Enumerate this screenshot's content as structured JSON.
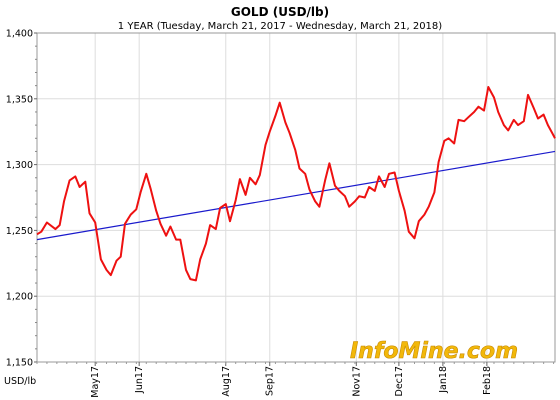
{
  "chart_data": {
    "type": "line",
    "title": "GOLD (USD/lb)",
    "subtitle": "1 YEAR (Tuesday, March 21, 2017  -  Wednesday, March 21, 2018)",
    "unit_label": "USD/lb",
    "ylim": [
      1150,
      1400
    ],
    "y_ticks": [
      1150,
      1200,
      1250,
      1300,
      1350,
      1400
    ],
    "y_tick_labels": [
      "1,150",
      "1,200",
      "1,250",
      "1,300",
      "1,350",
      "1,400"
    ],
    "x_range": [
      "2017-03-21",
      "2018-03-21"
    ],
    "x_ticks": [
      {
        "date": "2017-05-01",
        "label": "May17"
      },
      {
        "date": "2017-06-01",
        "label": "Jun17"
      },
      {
        "date": "2017-08-01",
        "label": "Aug17"
      },
      {
        "date": "2017-09-01",
        "label": "Sep17"
      },
      {
        "date": "2017-11-01",
        "label": "Nov17"
      },
      {
        "date": "2017-12-01",
        "label": "Dec17"
      },
      {
        "date": "2018-01-01",
        "label": "Jan18"
      },
      {
        "date": "2018-02-01",
        "label": "Feb18"
      }
    ],
    "grid": true,
    "series": [
      {
        "color": "#ee1111",
        "points": [
          [
            "2017-03-21",
            1247
          ],
          [
            "2017-03-24",
            1249
          ],
          [
            "2017-03-28",
            1256
          ],
          [
            "2017-04-03",
            1251
          ],
          [
            "2017-04-06",
            1254
          ],
          [
            "2017-04-09",
            1272
          ],
          [
            "2017-04-13",
            1288
          ],
          [
            "2017-04-17",
            1291
          ],
          [
            "2017-04-20",
            1283
          ],
          [
            "2017-04-24",
            1287
          ],
          [
            "2017-04-27",
            1263
          ],
          [
            "2017-05-01",
            1256
          ],
          [
            "2017-05-05",
            1228
          ],
          [
            "2017-05-09",
            1220
          ],
          [
            "2017-05-12",
            1216
          ],
          [
            "2017-05-16",
            1227
          ],
          [
            "2017-05-19",
            1230
          ],
          [
            "2017-05-22",
            1255
          ],
          [
            "2017-05-26",
            1262
          ],
          [
            "2017-05-30",
            1266
          ],
          [
            "2017-06-02",
            1279
          ],
          [
            "2017-06-06",
            1293
          ],
          [
            "2017-06-09",
            1282
          ],
          [
            "2017-06-13",
            1265
          ],
          [
            "2017-06-16",
            1255
          ],
          [
            "2017-06-20",
            1246
          ],
          [
            "2017-06-23",
            1253
          ],
          [
            "2017-06-27",
            1243
          ],
          [
            "2017-06-30",
            1243
          ],
          [
            "2017-07-04",
            1220
          ],
          [
            "2017-07-07",
            1213
          ],
          [
            "2017-07-11",
            1212
          ],
          [
            "2017-07-14",
            1228
          ],
          [
            "2017-07-18",
            1240
          ],
          [
            "2017-07-21",
            1254
          ],
          [
            "2017-07-25",
            1251
          ],
          [
            "2017-07-28",
            1267
          ],
          [
            "2017-08-01",
            1270
          ],
          [
            "2017-08-04",
            1257
          ],
          [
            "2017-08-08",
            1273
          ],
          [
            "2017-08-11",
            1289
          ],
          [
            "2017-08-15",
            1277
          ],
          [
            "2017-08-18",
            1290
          ],
          [
            "2017-08-22",
            1285
          ],
          [
            "2017-08-25",
            1292
          ],
          [
            "2017-08-29",
            1315
          ],
          [
            "2017-09-01",
            1325
          ],
          [
            "2017-09-05",
            1337
          ],
          [
            "2017-09-08",
            1347
          ],
          [
            "2017-09-12",
            1332
          ],
          [
            "2017-09-15",
            1324
          ],
          [
            "2017-09-19",
            1311
          ],
          [
            "2017-09-22",
            1297
          ],
          [
            "2017-09-26",
            1293
          ],
          [
            "2017-09-29",
            1281
          ],
          [
            "2017-10-03",
            1272
          ],
          [
            "2017-10-06",
            1268
          ],
          [
            "2017-10-10",
            1288
          ],
          [
            "2017-10-13",
            1301
          ],
          [
            "2017-10-17",
            1284
          ],
          [
            "2017-10-20",
            1280
          ],
          [
            "2017-10-24",
            1276
          ],
          [
            "2017-10-27",
            1268
          ],
          [
            "2017-10-31",
            1272
          ],
          [
            "2017-11-03",
            1276
          ],
          [
            "2017-11-07",
            1275
          ],
          [
            "2017-11-10",
            1283
          ],
          [
            "2017-11-14",
            1280
          ],
          [
            "2017-11-17",
            1291
          ],
          [
            "2017-11-21",
            1283
          ],
          [
            "2017-11-24",
            1293
          ],
          [
            "2017-11-28",
            1294
          ],
          [
            "2017-12-01",
            1280
          ],
          [
            "2017-12-05",
            1265
          ],
          [
            "2017-12-08",
            1249
          ],
          [
            "2017-12-12",
            1244
          ],
          [
            "2017-12-15",
            1257
          ],
          [
            "2017-12-19",
            1262
          ],
          [
            "2017-12-22",
            1268
          ],
          [
            "2017-12-26",
            1279
          ],
          [
            "2017-12-29",
            1302
          ],
          [
            "2018-01-02",
            1318
          ],
          [
            "2018-01-05",
            1320
          ],
          [
            "2018-01-09",
            1316
          ],
          [
            "2018-01-12",
            1334
          ],
          [
            "2018-01-16",
            1333
          ],
          [
            "2018-01-19",
            1336
          ],
          [
            "2018-01-23",
            1340
          ],
          [
            "2018-01-26",
            1344
          ],
          [
            "2018-01-30",
            1341
          ],
          [
            "2018-02-02",
            1359
          ],
          [
            "2018-02-06",
            1351
          ],
          [
            "2018-02-09",
            1340
          ],
          [
            "2018-02-13",
            1330
          ],
          [
            "2018-02-16",
            1326
          ],
          [
            "2018-02-20",
            1334
          ],
          [
            "2018-02-23",
            1330
          ],
          [
            "2018-02-27",
            1333
          ],
          [
            "2018-03-02",
            1353
          ],
          [
            "2018-03-06",
            1343
          ],
          [
            "2018-03-09",
            1335
          ],
          [
            "2018-03-13",
            1338
          ],
          [
            "2018-03-16",
            1330
          ],
          [
            "2018-03-19",
            1324
          ],
          [
            "2018-03-21",
            1320
          ]
        ]
      },
      {
        "type": "trendline",
        "color": "#1a1acc",
        "points": [
          [
            "2017-03-21",
            1243
          ],
          [
            "2018-03-21",
            1310
          ]
        ]
      }
    ],
    "watermark": "InfoMine.com"
  }
}
